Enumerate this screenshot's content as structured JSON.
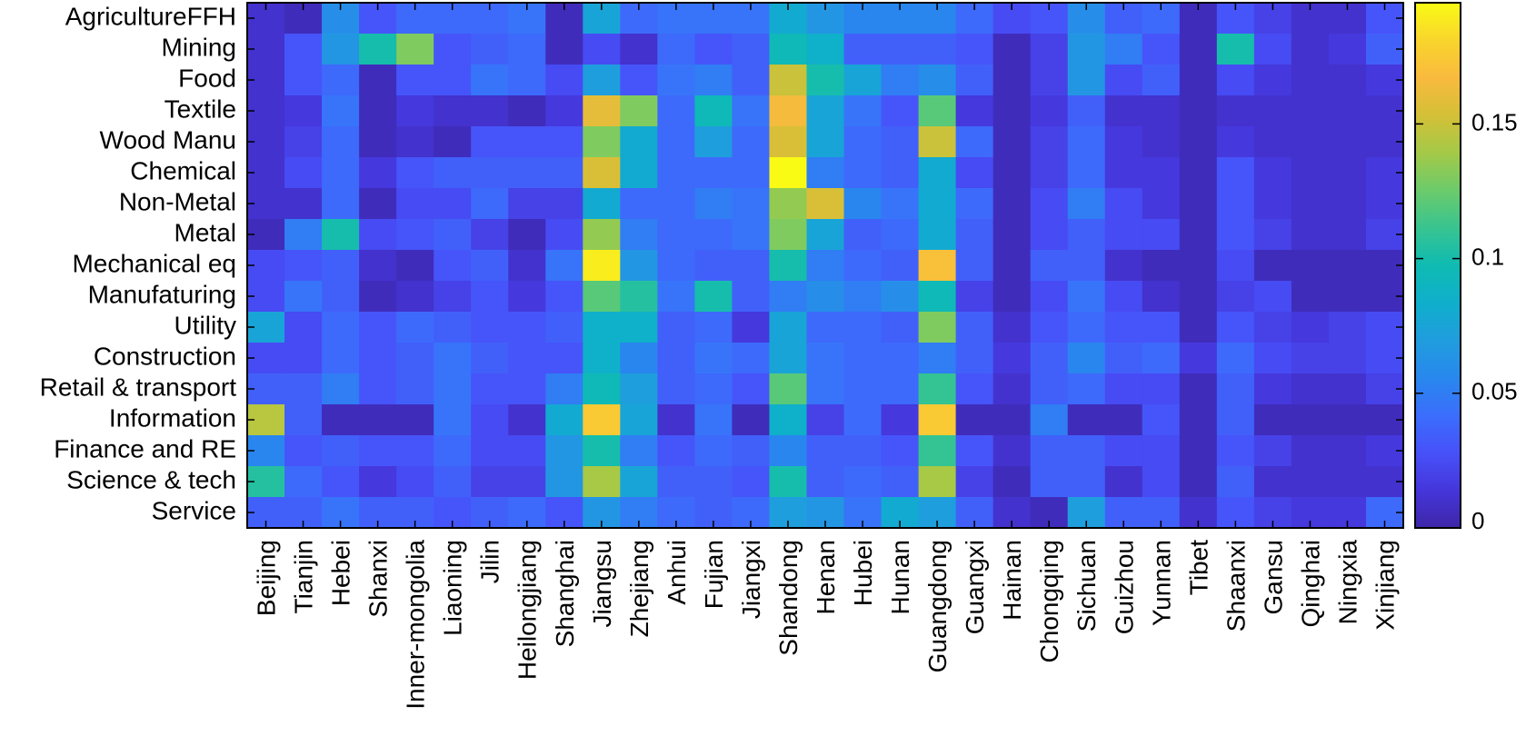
{
  "chart_data": {
    "type": "heatmap",
    "title": "",
    "xlabel": "",
    "ylabel": "",
    "rows": [
      "AgricultureFFH",
      "Mining",
      "Food",
      "Textile",
      "Wood Manu",
      "Chemical",
      "Non-Metal",
      "Metal",
      "Mechanical eq",
      "Manufaturing",
      "Utility",
      "Construction",
      "Retail & transport",
      "Information",
      "Finance and RE",
      "Science & tech",
      "Service"
    ],
    "columns": [
      "Beijing",
      "Tianjin",
      "Hebei",
      "Shanxi",
      "Inner-mongolia",
      "Liaoning",
      "Jilin",
      "Heilongjiang",
      "Shanghai",
      "Jiangsu",
      "Zhejiang",
      "Anhui",
      "Fujian",
      "Jiangxi",
      "Shandong",
      "Henan",
      "Hubei",
      "Hunan",
      "Guangdong",
      "Guangxi",
      "Hainan",
      "Chongqing",
      "Sichuan",
      "Guizhou",
      "Yunnan",
      "Tibet",
      "Shaanxi",
      "Gansu",
      "Qinghai",
      "Ningxia",
      "Xinjiang"
    ],
    "values": [
      [
        0.01,
        0.005,
        0.06,
        0.03,
        0.04,
        0.04,
        0.04,
        0.045,
        0.005,
        0.075,
        0.04,
        0.045,
        0.045,
        0.045,
        0.08,
        0.065,
        0.055,
        0.055,
        0.055,
        0.04,
        0.025,
        0.03,
        0.06,
        0.035,
        0.04,
        0.005,
        0.03,
        0.02,
        0.01,
        0.01,
        0.03
      ],
      [
        0.01,
        0.03,
        0.065,
        0.1,
        0.13,
        0.03,
        0.035,
        0.04,
        0.005,
        0.025,
        0.01,
        0.04,
        0.03,
        0.035,
        0.095,
        0.085,
        0.035,
        0.035,
        0.035,
        0.03,
        0.005,
        0.02,
        0.065,
        0.05,
        0.03,
        0.005,
        0.1,
        0.025,
        0.01,
        0.015,
        0.035
      ],
      [
        0.01,
        0.03,
        0.04,
        0.005,
        0.03,
        0.03,
        0.045,
        0.04,
        0.025,
        0.07,
        0.03,
        0.045,
        0.05,
        0.035,
        0.15,
        0.1,
        0.075,
        0.05,
        0.06,
        0.035,
        0.005,
        0.02,
        0.065,
        0.025,
        0.035,
        0.005,
        0.025,
        0.015,
        0.01,
        0.01,
        0.015
      ],
      [
        0.01,
        0.015,
        0.045,
        0.005,
        0.015,
        0.01,
        0.01,
        0.005,
        0.015,
        0.16,
        0.13,
        0.04,
        0.095,
        0.045,
        0.165,
        0.075,
        0.045,
        0.03,
        0.12,
        0.015,
        0.005,
        0.015,
        0.035,
        0.01,
        0.01,
        0.005,
        0.01,
        0.01,
        0.01,
        0.01,
        0.01
      ],
      [
        0.01,
        0.02,
        0.04,
        0.005,
        0.01,
        0.005,
        0.03,
        0.03,
        0.03,
        0.13,
        0.08,
        0.04,
        0.07,
        0.04,
        0.155,
        0.075,
        0.04,
        0.035,
        0.15,
        0.04,
        0.005,
        0.02,
        0.04,
        0.015,
        0.01,
        0.005,
        0.015,
        0.01,
        0.01,
        0.01,
        0.01
      ],
      [
        0.01,
        0.025,
        0.04,
        0.015,
        0.03,
        0.035,
        0.035,
        0.035,
        0.035,
        0.155,
        0.08,
        0.04,
        0.04,
        0.04,
        0.195,
        0.05,
        0.04,
        0.035,
        0.08,
        0.025,
        0.005,
        0.02,
        0.04,
        0.015,
        0.015,
        0.005,
        0.03,
        0.015,
        0.01,
        0.01,
        0.015
      ],
      [
        0.01,
        0.01,
        0.04,
        0.005,
        0.025,
        0.025,
        0.04,
        0.02,
        0.02,
        0.08,
        0.04,
        0.04,
        0.05,
        0.045,
        0.135,
        0.155,
        0.055,
        0.045,
        0.08,
        0.04,
        0.005,
        0.025,
        0.05,
        0.025,
        0.015,
        0.005,
        0.03,
        0.015,
        0.01,
        0.01,
        0.015
      ],
      [
        0.005,
        0.05,
        0.1,
        0.025,
        0.03,
        0.035,
        0.02,
        0.005,
        0.025,
        0.135,
        0.05,
        0.04,
        0.04,
        0.045,
        0.13,
        0.075,
        0.035,
        0.04,
        0.08,
        0.035,
        0.005,
        0.025,
        0.035,
        0.025,
        0.025,
        0.005,
        0.03,
        0.02,
        0.01,
        0.01,
        0.02
      ],
      [
        0.025,
        0.03,
        0.035,
        0.01,
        0.005,
        0.03,
        0.035,
        0.01,
        0.045,
        0.19,
        0.065,
        0.04,
        0.035,
        0.035,
        0.1,
        0.05,
        0.04,
        0.035,
        0.17,
        0.035,
        0.005,
        0.035,
        0.035,
        0.01,
        0.005,
        0.005,
        0.025,
        0.005,
        0.005,
        0.005,
        0.005
      ],
      [
        0.025,
        0.045,
        0.035,
        0.005,
        0.01,
        0.02,
        0.03,
        0.015,
        0.03,
        0.12,
        0.105,
        0.045,
        0.1,
        0.035,
        0.05,
        0.06,
        0.05,
        0.06,
        0.095,
        0.02,
        0.005,
        0.025,
        0.045,
        0.025,
        0.01,
        0.005,
        0.02,
        0.025,
        0.005,
        0.005,
        0.005
      ],
      [
        0.075,
        0.025,
        0.04,
        0.03,
        0.04,
        0.035,
        0.03,
        0.03,
        0.035,
        0.085,
        0.085,
        0.035,
        0.04,
        0.015,
        0.075,
        0.04,
        0.04,
        0.035,
        0.13,
        0.035,
        0.01,
        0.03,
        0.04,
        0.03,
        0.03,
        0.005,
        0.03,
        0.02,
        0.015,
        0.02,
        0.025
      ],
      [
        0.025,
        0.025,
        0.04,
        0.03,
        0.035,
        0.045,
        0.035,
        0.03,
        0.03,
        0.085,
        0.055,
        0.035,
        0.045,
        0.04,
        0.075,
        0.045,
        0.04,
        0.04,
        0.05,
        0.035,
        0.015,
        0.035,
        0.055,
        0.035,
        0.04,
        0.015,
        0.04,
        0.025,
        0.02,
        0.02,
        0.025
      ],
      [
        0.035,
        0.035,
        0.05,
        0.03,
        0.035,
        0.045,
        0.03,
        0.03,
        0.05,
        0.095,
        0.07,
        0.035,
        0.04,
        0.03,
        0.12,
        0.045,
        0.04,
        0.04,
        0.11,
        0.03,
        0.01,
        0.035,
        0.04,
        0.025,
        0.025,
        0.005,
        0.035,
        0.015,
        0.01,
        0.01,
        0.02
      ],
      [
        0.145,
        0.035,
        0.005,
        0.005,
        0.005,
        0.045,
        0.025,
        0.01,
        0.08,
        0.175,
        0.075,
        0.01,
        0.045,
        0.005,
        0.085,
        0.02,
        0.04,
        0.015,
        0.175,
        0.005,
        0.005,
        0.05,
        0.005,
        0.005,
        0.03,
        0.005,
        0.035,
        0.005,
        0.005,
        0.005,
        0.005
      ],
      [
        0.055,
        0.03,
        0.035,
        0.03,
        0.03,
        0.04,
        0.025,
        0.025,
        0.065,
        0.1,
        0.05,
        0.03,
        0.04,
        0.035,
        0.055,
        0.035,
        0.035,
        0.03,
        0.11,
        0.03,
        0.01,
        0.035,
        0.035,
        0.025,
        0.025,
        0.005,
        0.03,
        0.02,
        0.01,
        0.01,
        0.015
      ],
      [
        0.105,
        0.04,
        0.03,
        0.015,
        0.025,
        0.035,
        0.02,
        0.02,
        0.065,
        0.14,
        0.075,
        0.035,
        0.035,
        0.03,
        0.1,
        0.035,
        0.04,
        0.035,
        0.14,
        0.02,
        0.005,
        0.035,
        0.035,
        0.01,
        0.025,
        0.005,
        0.035,
        0.01,
        0.01,
        0.01,
        0.01
      ],
      [
        0.035,
        0.035,
        0.045,
        0.035,
        0.035,
        0.03,
        0.035,
        0.04,
        0.03,
        0.065,
        0.05,
        0.04,
        0.035,
        0.04,
        0.07,
        0.065,
        0.045,
        0.08,
        0.07,
        0.035,
        0.01,
        0.005,
        0.07,
        0.035,
        0.035,
        0.01,
        0.03,
        0.02,
        0.015,
        0.015,
        0.04
      ]
    ],
    "colorbar": {
      "range": [
        0,
        0.195
      ],
      "ticks": [
        0,
        0.05,
        0.1,
        0.15
      ],
      "tick_labels": [
        "0",
        "0.05",
        "0.1",
        "0.15"
      ]
    },
    "colormap": "parula",
    "grid": false
  }
}
